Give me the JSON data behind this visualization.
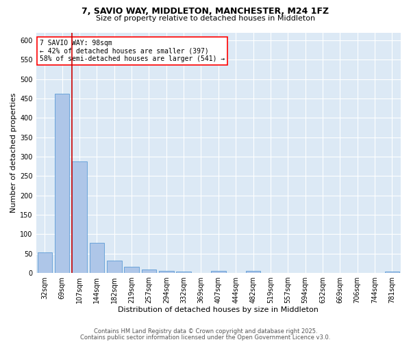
{
  "title_line1": "7, SAVIO WAY, MIDDLETON, MANCHESTER, M24 1FZ",
  "title_line2": "Size of property relative to detached houses in Middleton",
  "xlabel": "Distribution of detached houses by size in Middleton",
  "ylabel": "Number of detached properties",
  "categories": [
    "32sqm",
    "69sqm",
    "107sqm",
    "144sqm",
    "182sqm",
    "219sqm",
    "257sqm",
    "294sqm",
    "332sqm",
    "369sqm",
    "407sqm",
    "444sqm",
    "482sqm",
    "519sqm",
    "557sqm",
    "594sqm",
    "632sqm",
    "669sqm",
    "706sqm",
    "744sqm",
    "781sqm"
  ],
  "values": [
    53,
    462,
    287,
    77,
    31,
    15,
    9,
    5,
    4,
    0,
    5,
    0,
    6,
    0,
    0,
    0,
    0,
    0,
    0,
    0,
    4
  ],
  "bar_color": "#aec6e8",
  "bar_edge_color": "#5b9bd5",
  "red_line_index": 2,
  "annotation_line1": "7 SAVIO WAY: 98sqm",
  "annotation_line2": "← 42% of detached houses are smaller (397)",
  "annotation_line3": "58% of semi-detached houses are larger (541) →",
  "annotation_box_color": "white",
  "annotation_edge_color": "red",
  "red_line_color": "#cc0000",
  "ylim": [
    0,
    620
  ],
  "yticks": [
    0,
    50,
    100,
    150,
    200,
    250,
    300,
    350,
    400,
    450,
    500,
    550,
    600
  ],
  "background_color": "#dce9f5",
  "grid_color": "white",
  "footer_line1": "Contains HM Land Registry data © Crown copyright and database right 2025.",
  "footer_line2": "Contains public sector information licensed under the Open Government Licence v3.0.",
  "title_fontsize": 9,
  "subtitle_fontsize": 8,
  "axis_label_fontsize": 8,
  "tick_fontsize": 7,
  "annotation_fontsize": 7,
  "footer_fontsize": 6
}
